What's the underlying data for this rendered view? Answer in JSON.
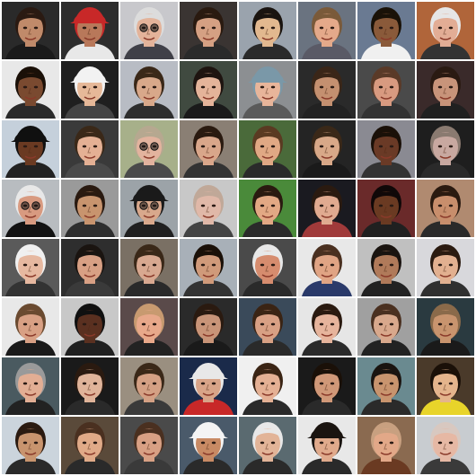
{
  "grid": {
    "rows": 8,
    "cols": 8,
    "tiles": [
      {
        "bg": "#2a2a2a",
        "skin": "#c08a6a",
        "hair": "#2a1a12",
        "accent": "#1a1a1a"
      },
      {
        "bg": "#2d2d2d",
        "skin": "#b8785a",
        "hair": "#c82828",
        "accent": "#e8e8e8",
        "hat": true
      },
      {
        "bg": "#c8c8cc",
        "skin": "#e3b39a",
        "hair": "#dcdcdc",
        "accent": "#404048",
        "glasses": true
      },
      {
        "bg": "#3a3432",
        "skin": "#d5a083",
        "hair": "#2a1a10",
        "accent": "#2a2a2a"
      },
      {
        "bg": "#9aa3ad",
        "skin": "#e2b88f",
        "hair": "#1a1410",
        "accent": "#2a2a2a"
      },
      {
        "bg": "#6a7380",
        "skin": "#e4a98a",
        "hair": "#7a5a3a",
        "accent": "#5a5a66"
      },
      {
        "bg": "#6a7a92",
        "skin": "#8a5a3a",
        "hair": "#1a1208",
        "accent": "#f0f0f0"
      },
      {
        "bg": "#b0653a",
        "skin": "#e2ad95",
        "hair": "#e6e6e6",
        "accent": "#333"
      },
      {
        "bg": "#e8e8e8",
        "skin": "#7a4a30",
        "hair": "#1a1008",
        "accent": "#2a2a2a"
      },
      {
        "bg": "#1f1f1f",
        "skin": "#e6b898",
        "hair": "#f2f2f2",
        "accent": "#444",
        "hat": true
      },
      {
        "bg": "#b8bcc4",
        "skin": "#d8a88a",
        "hair": "#3a2818",
        "accent": "#2e2e2e"
      },
      {
        "bg": "#404a40",
        "skin": "#e4b49a",
        "hair": "#1e1410",
        "accent": "#1a1a1a"
      },
      {
        "bg": "#8c8f92",
        "skin": "#e8b59a",
        "hair": "#7a98a8",
        "accent": "#5a5a5a",
        "hat": true
      },
      {
        "bg": "#2a2a2a",
        "skin": "#c49070",
        "hair": "#3a2618",
        "accent": "#222"
      },
      {
        "bg": "#4a4a4a",
        "skin": "#d89a80",
        "hair": "#5a3a28",
        "accent": "#333"
      },
      {
        "bg": "#3a2a2a",
        "skin": "#c8947a",
        "hair": "#2a1a12",
        "accent": "#202020"
      },
      {
        "bg": "#c5d0db",
        "skin": "#6a3a22",
        "hair": "#101010",
        "accent": "#222",
        "hat": true
      },
      {
        "bg": "#3a3a3a",
        "skin": "#e4b094",
        "hair": "#3a2818",
        "accent": "#4a4a4a"
      },
      {
        "bg": "#a7b08a",
        "skin": "#e2b39e",
        "hair": "#b6a890",
        "accent": "#4a4a4a",
        "glasses": true
      },
      {
        "bg": "#8a7f74",
        "skin": "#d9a68a",
        "hair": "#2a1a10",
        "accent": "#333"
      },
      {
        "bg": "#4a6a3a",
        "skin": "#e0a884",
        "hair": "#5a3a22",
        "accent": "#2a2a2a"
      },
      {
        "bg": "#242424",
        "skin": "#d8a888",
        "hair": "#3a2818",
        "accent": "#1a1a1a"
      },
      {
        "bg": "#8a8a92",
        "skin": "#6a3a26",
        "hair": "#1a1008",
        "accent": "#333"
      },
      {
        "bg": "#1e1e1e",
        "skin": "#c8a8a0",
        "hair": "#8a7a70",
        "accent": "#2a2a2a"
      },
      {
        "bg": "#b8bcc0",
        "skin": "#d89a80",
        "hair": "#e8e8e8",
        "accent": "#121212",
        "glasses": true
      },
      {
        "bg": "#9a9a9a",
        "skin": "#c8946e",
        "hair": "#2a1a10",
        "accent": "#2e2e2e"
      },
      {
        "bg": "#9ca3a8",
        "skin": "#d8a88c",
        "hair": "#1a1a1a",
        "accent": "#202020",
        "hat": true,
        "glasses": true
      },
      {
        "bg": "#c8c8c8",
        "skin": "#e0b8a8",
        "hair": "#c0a898",
        "accent": "#444"
      },
      {
        "bg": "#4a8a3a",
        "skin": "#e2a884",
        "hair": "#2a1a10",
        "accent": "#2a2a2a"
      },
      {
        "bg": "#1a1a20",
        "skin": "#e0aa90",
        "hair": "#2a1a10",
        "accent": "#a03a3a"
      },
      {
        "bg": "#6a2a2a",
        "skin": "#6a3a22",
        "hair": "#100808",
        "accent": "#202020"
      },
      {
        "bg": "#b08a70",
        "skin": "#c88e6c",
        "hair": "#2a1a10",
        "accent": "#2a2a2a"
      },
      {
        "bg": "#5a5a5a",
        "skin": "#e6b8a0",
        "hair": "#f0f0f0",
        "accent": "#333"
      },
      {
        "bg": "#2e2e2e",
        "skin": "#d8a084",
        "hair": "#1a1410",
        "accent": "#3a3a3a"
      },
      {
        "bg": "#7a7064",
        "skin": "#d8a890",
        "hair": "#3a2818",
        "accent": "#2a2a2a"
      },
      {
        "bg": "#a8b0b8",
        "skin": "#d09a7a",
        "hair": "#1a1008",
        "accent": "#333"
      },
      {
        "bg": "#4a4a4a",
        "skin": "#d68c6e",
        "hair": "#e8e8e8",
        "accent": "#2a2a2a"
      },
      {
        "bg": "#e8e8e8",
        "skin": "#e0a484",
        "hair": "#4a3020",
        "accent": "#2a3a6a"
      },
      {
        "bg": "#c0c0c0",
        "skin": "#b07a5a",
        "hair": "#1a1410",
        "accent": "#222"
      },
      {
        "bg": "#d8d8dc",
        "skin": "#e2b090",
        "hair": "#2a1a10",
        "accent": "#303030"
      },
      {
        "bg": "#e8e8e8",
        "skin": "#d8a084",
        "hair": "#6a4a30",
        "accent": "#1a1a1a"
      },
      {
        "bg": "#c8c8c8",
        "skin": "#5a3020",
        "hair": "#101010",
        "accent": "#202020"
      },
      {
        "bg": "#5a4a4a",
        "skin": "#e8a88a",
        "hair": "#c89a70",
        "accent": "#222"
      },
      {
        "bg": "#2a2a2a",
        "skin": "#c89478",
        "hair": "#2a1a10",
        "accent": "#1a1a1a"
      },
      {
        "bg": "#3a4a5a",
        "skin": "#d8a084",
        "hair": "#3a2414",
        "accent": "#2a2a2a"
      },
      {
        "bg": "#e6e6e6",
        "skin": "#e6b49c",
        "hair": "#2a1a10",
        "accent": "#2a2a2a"
      },
      {
        "bg": "#a0a0a0",
        "skin": "#d8a88c",
        "hair": "#4a3020",
        "accent": "#222"
      },
      {
        "bg": "#2a3a40",
        "skin": "#c8946e",
        "hair": "#8a6a4a",
        "accent": "#1a1a1a"
      },
      {
        "bg": "#4a5a60",
        "skin": "#e2ae94",
        "hair": "#9a9a9a",
        "accent": "#222"
      },
      {
        "bg": "#1a1a1a",
        "skin": "#e0b49a",
        "hair": "#2a1a10",
        "accent": "#2a2a2a"
      },
      {
        "bg": "#9a8f80",
        "skin": "#d4a084",
        "hair": "#3a2818",
        "accent": "#3a3a3a"
      },
      {
        "bg": "#1a2a4a",
        "skin": "#d8a488",
        "hair": "#e8e8e8",
        "accent": "#c82828",
        "hat": true
      },
      {
        "bg": "#f0f0f0",
        "skin": "#e4b094",
        "hair": "#3a2414",
        "accent": "#2a2a2a"
      },
      {
        "bg": "#1a1a1a",
        "skin": "#d09878",
        "hair": "#1a1008",
        "accent": "#2a2a2a"
      },
      {
        "bg": "#6a8a90",
        "skin": "#c8946e",
        "hair": "#1a1410",
        "accent": "#2a2a2a"
      },
      {
        "bg": "#4a3a2a",
        "skin": "#e4b48c",
        "hair": "#1a1008",
        "accent": "#e8d42a"
      },
      {
        "bg": "#cbd4dc",
        "skin": "#c8946e",
        "hair": "#2a1a10",
        "accent": "#2a2a2a"
      },
      {
        "bg": "#5a4a3a",
        "skin": "#e0aa88",
        "hair": "#4a3020",
        "accent": "#2a2a2a"
      },
      {
        "bg": "#4a4a4a",
        "skin": "#d8a084",
        "hair": "#4a3020",
        "accent": "#3a3a3a"
      },
      {
        "bg": "#4a5a6a",
        "skin": "#c88a64",
        "hair": "#f4f4f4",
        "accent": "#2a2a2a",
        "hat": true
      },
      {
        "bg": "#5a6a70",
        "skin": "#e2b498",
        "hair": "#e8e8e8",
        "accent": "#2a2a2a"
      },
      {
        "bg": "#e8e8e8",
        "skin": "#e0aa8c",
        "hair": "#1a1410",
        "accent": "#2a2a2a",
        "hat": true
      },
      {
        "bg": "#8a6a50",
        "skin": "#e2a888",
        "hair": "#c8a080",
        "accent": "#6a3a22"
      },
      {
        "bg": "#c8ccd0",
        "skin": "#e6b8a4",
        "hair": "#d8c8c0",
        "accent": "#3a3a3a"
      }
    ]
  }
}
